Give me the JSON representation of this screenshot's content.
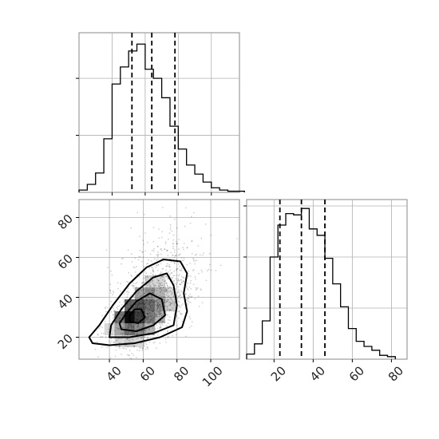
{
  "chart_data": [
    {
      "type": "histogram",
      "panel": "top-left marginal",
      "bin_edges": [
        20,
        25,
        30,
        35,
        40,
        45,
        50,
        55,
        60,
        65,
        70,
        75,
        80,
        85,
        90,
        95,
        100,
        105,
        110,
        115,
        120
      ],
      "counts": [
        2,
        7,
        17,
        47,
        95,
        110,
        124,
        130,
        108,
        100,
        83,
        58,
        38,
        24,
        16,
        9,
        4,
        2,
        1,
        1
      ],
      "quantiles": [
        52,
        64,
        78
      ],
      "xlim": [
        20,
        117
      ],
      "ylim": [
        0,
        140
      ],
      "grid": true
    },
    {
      "type": "histogram",
      "panel": "bottom-right marginal",
      "bin_edges": [
        6,
        10,
        14,
        18,
        22,
        26,
        30,
        34,
        38,
        42,
        46,
        50,
        54,
        58,
        62,
        66,
        70,
        74,
        78,
        82
      ],
      "counts": [
        4,
        12,
        30,
        80,
        105,
        114,
        113,
        118,
        102,
        97,
        79,
        59,
        41,
        24,
        14,
        10,
        7,
        3,
        2
      ],
      "quantiles": [
        23,
        34,
        46
      ],
      "xlim": [
        6,
        88
      ],
      "ylim": [
        0,
        125
      ],
      "xticks": [
        20,
        40,
        60,
        80
      ],
      "grid": true
    },
    {
      "type": "heatmap",
      "panel": "bottom-left 2d density",
      "xlim": [
        22,
        117
      ],
      "ylim": [
        9,
        89
      ],
      "xticks": [
        40,
        60,
        80,
        100
      ],
      "yticks": [
        20,
        40,
        60,
        80
      ],
      "density_peak": [
        56,
        31
      ],
      "contour_levels": 4,
      "grid": true
    }
  ]
}
